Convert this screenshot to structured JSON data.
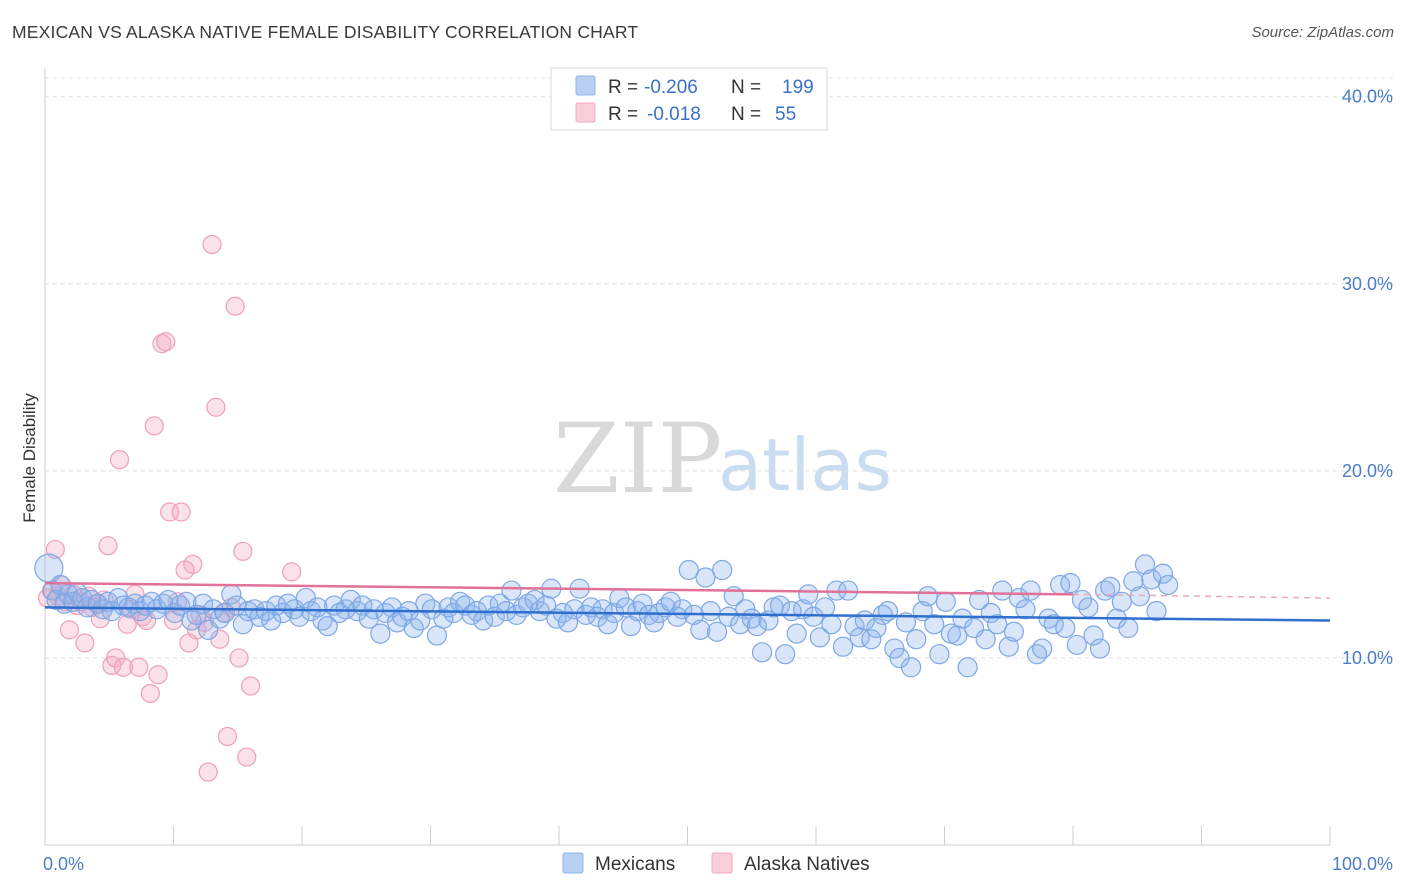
{
  "header": {
    "title": "MEXICAN VS ALASKA NATIVE FEMALE DISABILITY CORRELATION CHART",
    "source": "Source: ZipAtlas.com"
  },
  "watermark": {
    "zip": "ZIP",
    "atlas": "atlas"
  },
  "legend_top": {
    "rows": [
      {
        "r_label": "R =",
        "r_value": "-0.206",
        "n_label": "N =",
        "n_value": "199",
        "color": "#8db4ec"
      },
      {
        "r_label": "R =",
        "r_value": "-0.018",
        "n_label": "N =",
        "n_value": "55",
        "color": "#f4a9c0"
      }
    ]
  },
  "legend_bottom": {
    "items": [
      {
        "label": "Mexicans",
        "color": "#8db4ec"
      },
      {
        "label": "Alaska Natives",
        "color": "#f4a9c0"
      }
    ]
  },
  "chart_data": {
    "type": "scatter",
    "title": "MEXICAN VS ALASKA NATIVE FEMALE DISABILITY CORRELATION CHART",
    "xlabel": "",
    "ylabel": "Female Disability",
    "xlim": [
      0,
      100
    ],
    "ylim": [
      0,
      41
    ],
    "y_ticks": [
      10,
      20,
      30,
      40
    ],
    "y_tick_labels": [
      "10.0%",
      "20.0%",
      "30.0%",
      "40.0%"
    ],
    "x_tick_labels": [
      "0.0%",
      "100.0%"
    ],
    "colors": {
      "mexicans": "#5b8fdc",
      "alaska": "#e97fa1",
      "blue_line": "#2f6fce",
      "pink_line": "#e07199"
    },
    "series": [
      {
        "name": "Mexicans",
        "trend": {
          "x": [
            0,
            100
          ],
          "y": [
            12.7,
            12.0
          ]
        },
        "points": [
          [
            0.3,
            14.8
          ],
          [
            0.6,
            13.6
          ],
          [
            0.9,
            13.1
          ],
          [
            1.2,
            13.9
          ],
          [
            1.5,
            12.9
          ],
          [
            1.8,
            13.4
          ],
          [
            2.2,
            13.0
          ],
          [
            2.5,
            13.5
          ],
          [
            2.9,
            13.2
          ],
          [
            3.3,
            12.7
          ],
          [
            3.6,
            13.1
          ],
          [
            4.1,
            12.9
          ],
          [
            4.5,
            12.6
          ],
          [
            4.9,
            13.0
          ],
          [
            5.2,
            12.5
          ],
          [
            5.7,
            13.2
          ],
          [
            6.1,
            12.8
          ],
          [
            6.5,
            12.7
          ],
          [
            7.0,
            12.9
          ],
          [
            7.4,
            12.5
          ],
          [
            7.8,
            12.8
          ],
          [
            8.3,
            13.0
          ],
          [
            8.7,
            12.6
          ],
          [
            9.2,
            12.9
          ],
          [
            9.6,
            13.1
          ],
          [
            10.1,
            12.4
          ],
          [
            10.5,
            12.8
          ],
          [
            11.0,
            13.0
          ],
          [
            11.4,
            12.0
          ],
          [
            11.8,
            12.3
          ],
          [
            12.3,
            12.9
          ],
          [
            12.7,
            11.5
          ],
          [
            13.1,
            12.6
          ],
          [
            13.6,
            12.1
          ],
          [
            14.0,
            12.4
          ],
          [
            14.5,
            13.4
          ],
          [
            14.9,
            12.8
          ],
          [
            15.4,
            11.8
          ],
          [
            15.8,
            12.5
          ],
          [
            16.3,
            12.6
          ],
          [
            16.7,
            12.2
          ],
          [
            17.2,
            12.5
          ],
          [
            17.6,
            12.0
          ],
          [
            18.0,
            12.8
          ],
          [
            18.5,
            12.4
          ],
          [
            18.9,
            12.9
          ],
          [
            19.4,
            12.6
          ],
          [
            19.8,
            12.2
          ],
          [
            20.3,
            13.2
          ],
          [
            20.7,
            12.5
          ],
          [
            21.2,
            12.7
          ],
          [
            21.6,
            12.0
          ],
          [
            22.0,
            11.7
          ],
          [
            22.5,
            12.8
          ],
          [
            22.9,
            12.4
          ],
          [
            23.4,
            12.6
          ],
          [
            23.8,
            13.1
          ],
          [
            24.3,
            12.5
          ],
          [
            24.7,
            12.8
          ],
          [
            25.2,
            12.1
          ],
          [
            25.6,
            12.6
          ],
          [
            26.1,
            11.3
          ],
          [
            26.5,
            12.4
          ],
          [
            27.0,
            12.7
          ],
          [
            27.4,
            11.9
          ],
          [
            27.8,
            12.2
          ],
          [
            28.3,
            12.5
          ],
          [
            28.7,
            11.6
          ],
          [
            29.2,
            12.0
          ],
          [
            29.6,
            12.9
          ],
          [
            30.1,
            12.6
          ],
          [
            30.5,
            11.2
          ],
          [
            31.0,
            12.1
          ],
          [
            31.4,
            12.7
          ],
          [
            31.8,
            12.4
          ],
          [
            32.3,
            13.0
          ],
          [
            32.7,
            12.8
          ],
          [
            33.2,
            12.3
          ],
          [
            33.6,
            12.5
          ],
          [
            34.1,
            12.0
          ],
          [
            34.5,
            12.8
          ],
          [
            35.0,
            12.2
          ],
          [
            35.4,
            12.9
          ],
          [
            35.9,
            12.5
          ],
          [
            36.3,
            13.6
          ],
          [
            36.7,
            12.3
          ],
          [
            37.2,
            12.7
          ],
          [
            37.6,
            12.9
          ],
          [
            38.1,
            13.1
          ],
          [
            38.5,
            12.5
          ],
          [
            39.0,
            12.8
          ],
          [
            39.4,
            13.7
          ],
          [
            39.8,
            12.1
          ],
          [
            40.3,
            12.4
          ],
          [
            40.7,
            11.9
          ],
          [
            41.2,
            12.6
          ],
          [
            41.6,
            13.7
          ],
          [
            42.1,
            12.3
          ],
          [
            42.5,
            12.7
          ],
          [
            43.0,
            12.2
          ],
          [
            43.4,
            12.6
          ],
          [
            43.8,
            11.8
          ],
          [
            44.3,
            12.4
          ],
          [
            44.7,
            13.2
          ],
          [
            45.2,
            12.7
          ],
          [
            45.6,
            11.7
          ],
          [
            46.1,
            12.5
          ],
          [
            46.5,
            12.9
          ],
          [
            47.0,
            12.3
          ],
          [
            47.4,
            11.9
          ],
          [
            47.8,
            12.4
          ],
          [
            48.3,
            12.7
          ],
          [
            48.7,
            13.0
          ],
          [
            49.2,
            12.2
          ],
          [
            49.6,
            12.6
          ],
          [
            50.1,
            14.7
          ],
          [
            50.5,
            12.3
          ],
          [
            51.0,
            11.5
          ],
          [
            51.4,
            14.3
          ],
          [
            51.8,
            12.5
          ],
          [
            52.3,
            11.4
          ],
          [
            52.7,
            14.7
          ],
          [
            53.2,
            12.2
          ],
          [
            53.6,
            13.3
          ],
          [
            54.1,
            11.8
          ],
          [
            54.5,
            12.6
          ],
          [
            55.0,
            12.1
          ],
          [
            55.4,
            11.7
          ],
          [
            55.8,
            10.3
          ],
          [
            56.3,
            12.0
          ],
          [
            56.7,
            12.7
          ],
          [
            57.2,
            12.8
          ],
          [
            57.6,
            10.2
          ],
          [
            58.1,
            12.5
          ],
          [
            58.5,
            11.3
          ],
          [
            59.0,
            12.6
          ],
          [
            59.4,
            13.4
          ],
          [
            59.8,
            12.2
          ],
          [
            60.3,
            11.1
          ],
          [
            60.7,
            12.7
          ],
          [
            61.2,
            11.8
          ],
          [
            61.6,
            13.6
          ],
          [
            62.1,
            10.6
          ],
          [
            62.5,
            13.6
          ],
          [
            63.0,
            11.7
          ],
          [
            63.4,
            11.1
          ],
          [
            63.8,
            12.0
          ],
          [
            64.3,
            11.0
          ],
          [
            64.7,
            11.6
          ],
          [
            65.2,
            12.3
          ],
          [
            65.6,
            12.5
          ],
          [
            66.1,
            10.5
          ],
          [
            66.5,
            10.0
          ],
          [
            67.0,
            11.9
          ],
          [
            67.4,
            9.5
          ],
          [
            67.8,
            11.0
          ],
          [
            68.3,
            12.5
          ],
          [
            68.7,
            13.3
          ],
          [
            69.2,
            11.8
          ],
          [
            69.6,
            10.2
          ],
          [
            70.1,
            13.0
          ],
          [
            70.5,
            11.3
          ],
          [
            71.0,
            11.2
          ],
          [
            71.4,
            12.1
          ],
          [
            71.8,
            9.5
          ],
          [
            72.3,
            11.6
          ],
          [
            72.7,
            13.1
          ],
          [
            73.2,
            11.0
          ],
          [
            73.6,
            12.4
          ],
          [
            74.1,
            11.8
          ],
          [
            74.5,
            13.6
          ],
          [
            75.0,
            10.6
          ],
          [
            75.4,
            11.4
          ],
          [
            75.8,
            13.2
          ],
          [
            76.3,
            12.6
          ],
          [
            76.7,
            13.6
          ],
          [
            77.2,
            10.2
          ],
          [
            77.6,
            10.5
          ],
          [
            78.1,
            12.1
          ],
          [
            78.5,
            11.8
          ],
          [
            79.0,
            13.9
          ],
          [
            79.4,
            11.6
          ],
          [
            79.8,
            14.0
          ],
          [
            80.3,
            10.7
          ],
          [
            80.7,
            13.1
          ],
          [
            81.2,
            12.7
          ],
          [
            81.6,
            11.2
          ],
          [
            82.1,
            10.5
          ],
          [
            82.5,
            13.6
          ],
          [
            82.9,
            13.8
          ],
          [
            83.4,
            12.1
          ],
          [
            83.8,
            13.0
          ],
          [
            84.3,
            11.6
          ],
          [
            84.7,
            14.1
          ],
          [
            85.2,
            13.3
          ],
          [
            85.6,
            15.0
          ],
          [
            86.1,
            14.2
          ],
          [
            86.5,
            12.5
          ],
          [
            87.0,
            14.5
          ],
          [
            87.4,
            13.9
          ]
        ]
      },
      {
        "name": "Alaska Natives",
        "trend": {
          "x": [
            0,
            80
          ],
          "y": [
            14.0,
            13.4
          ]
        },
        "trend_dashed": {
          "x": [
            80,
            100
          ],
          "y": [
            13.4,
            13.2
          ]
        },
        "points": [
          [
            0.2,
            13.2
          ],
          [
            0.5,
            13.6
          ],
          [
            0.8,
            15.8
          ],
          [
            1.0,
            13.3
          ],
          [
            1.3,
            13.9
          ],
          [
            1.6,
            13.0
          ],
          [
            1.9,
            11.5
          ],
          [
            2.2,
            13.4
          ],
          [
            2.5,
            12.8
          ],
          [
            2.8,
            13.0
          ],
          [
            3.1,
            10.8
          ],
          [
            3.4,
            13.3
          ],
          [
            3.7,
            12.7
          ],
          [
            4.0,
            12.9
          ],
          [
            4.3,
            12.1
          ],
          [
            4.6,
            13.1
          ],
          [
            4.9,
            16.0
          ],
          [
            5.2,
            9.6
          ],
          [
            5.5,
            10.0
          ],
          [
            5.8,
            20.6
          ],
          [
            6.1,
            9.5
          ],
          [
            6.4,
            11.8
          ],
          [
            6.7,
            12.6
          ],
          [
            7.0,
            13.4
          ],
          [
            7.3,
            9.5
          ],
          [
            7.6,
            12.2
          ],
          [
            7.9,
            12.0
          ],
          [
            8.2,
            8.1
          ],
          [
            8.5,
            22.4
          ],
          [
            8.8,
            9.1
          ],
          [
            9.1,
            26.8
          ],
          [
            9.4,
            26.9
          ],
          [
            9.7,
            17.8
          ],
          [
            10.0,
            12.0
          ],
          [
            10.3,
            13.0
          ],
          [
            10.6,
            17.8
          ],
          [
            10.9,
            14.7
          ],
          [
            11.2,
            10.8
          ],
          [
            11.5,
            15.0
          ],
          [
            11.8,
            11.5
          ],
          [
            12.1,
            12.3
          ],
          [
            12.4,
            11.9
          ],
          [
            12.7,
            3.9
          ],
          [
            13.0,
            32.1
          ],
          [
            13.3,
            23.4
          ],
          [
            13.6,
            11.0
          ],
          [
            13.9,
            12.4
          ],
          [
            14.2,
            5.8
          ],
          [
            14.5,
            12.7
          ],
          [
            14.8,
            28.8
          ],
          [
            15.1,
            10.0
          ],
          [
            15.4,
            15.7
          ],
          [
            15.7,
            4.7
          ],
          [
            16.0,
            8.5
          ],
          [
            19.2,
            14.6
          ]
        ]
      }
    ]
  }
}
